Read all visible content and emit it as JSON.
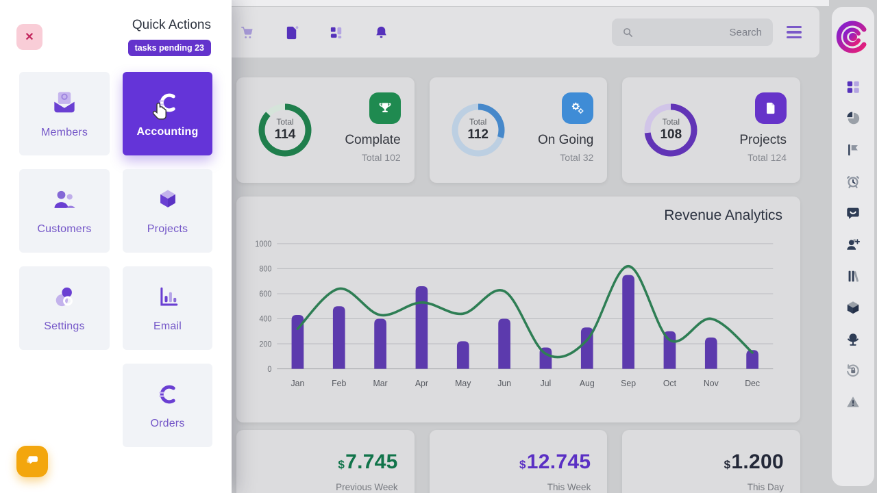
{
  "theme": {
    "accent": "#6434d8",
    "badge": "#6333cc",
    "tile_bg": "#f1f3f7",
    "tile_text": "#7456c8",
    "fab": "#f3a60d",
    "close_bg": "#f9cdd7",
    "close_x": "#c2255c"
  },
  "drawer": {
    "title": "Quick Actions",
    "badge": "tasks pending 23",
    "tiles": [
      {
        "label": "Members",
        "icon": "open-envelope-icon"
      },
      {
        "label": "Accounting",
        "icon": "euro-icon",
        "active": true
      },
      {
        "label": "Customers",
        "icon": "people-icon"
      },
      {
        "label": "Projects",
        "icon": "cube-icon"
      },
      {
        "label": "Settings",
        "icon": "circles-icon"
      },
      {
        "label": "Email",
        "icon": "bar-chart-icon"
      },
      {
        "label": "Orders",
        "icon": "euro-icon"
      }
    ]
  },
  "topbar": {
    "search_placeholder": "Search",
    "icons": [
      "cart-icon",
      "document-icon",
      "layout-icon",
      "bell-icon",
      "search-icon",
      "menu-icon"
    ]
  },
  "stats": [
    {
      "title": "Complate",
      "subtitle": "Total 102",
      "icon": "trophy-icon",
      "icon_bg": "#1f8a50",
      "donut": {
        "label": "Total",
        "value": "114",
        "percent": 87,
        "color": "#1f7e4c",
        "track": "#d5e4da"
      }
    },
    {
      "title": "On Going",
      "subtitle": "Total 32",
      "icon": "gears-icon",
      "icon_bg": "#3f8cd6",
      "donut": {
        "label": "Total",
        "value": "112",
        "percent": 30,
        "color": "#4688ca",
        "track": "#bccfe2"
      }
    },
    {
      "title": "Projects",
      "subtitle": "Total 124",
      "icon": "file-icon",
      "icon_bg": "#6633c9",
      "donut": {
        "label": "Total",
        "value": "108",
        "percent": 73,
        "color": "#6134b6",
        "track": "#d1c5e8"
      }
    }
  ],
  "chart_data": {
    "type": "bar+line",
    "title": "Revenue Analytics",
    "categories": [
      "Jan",
      "Feb",
      "Mar",
      "Apr",
      "May",
      "Jun",
      "Jul",
      "Aug",
      "Sep",
      "Oct",
      "Nov",
      "Dec"
    ],
    "series": [
      {
        "name": "revenue-bars",
        "type": "bar",
        "values": [
          430,
          500,
          400,
          660,
          220,
          400,
          170,
          330,
          750,
          300,
          250,
          150
        ]
      },
      {
        "name": "revenue-trend",
        "type": "line",
        "values": [
          320,
          640,
          430,
          530,
          440,
          620,
          120,
          230,
          820,
          230,
          400,
          130
        ]
      }
    ],
    "xlabel": "",
    "ylabel": "",
    "ylim": [
      0,
      1000
    ],
    "yticks": [
      0,
      200,
      400,
      600,
      800,
      1000
    ],
    "grid": true,
    "legend": "none",
    "bar_color": "#5c3aad",
    "line_color": "#2e7e54"
  },
  "totals": [
    {
      "currency": "$",
      "value": "7.745",
      "label": "Previous Week",
      "color": "#11744a"
    },
    {
      "currency": "$",
      "value": "12.745",
      "label": "This Week",
      "color": "#5a2fc4"
    },
    {
      "currency": "$",
      "value": "1.200",
      "label": "This Day",
      "color": "#232838"
    }
  ],
  "sidebar": {
    "icons": [
      "grid-icon",
      "pie-chart-icon",
      "flag-icon",
      "alarm-clock-icon",
      "chat-icon",
      "person-add-icon",
      "library-icon",
      "cube-icon",
      "globe-icon",
      "lock-refresh-icon",
      "warning-icon"
    ]
  }
}
